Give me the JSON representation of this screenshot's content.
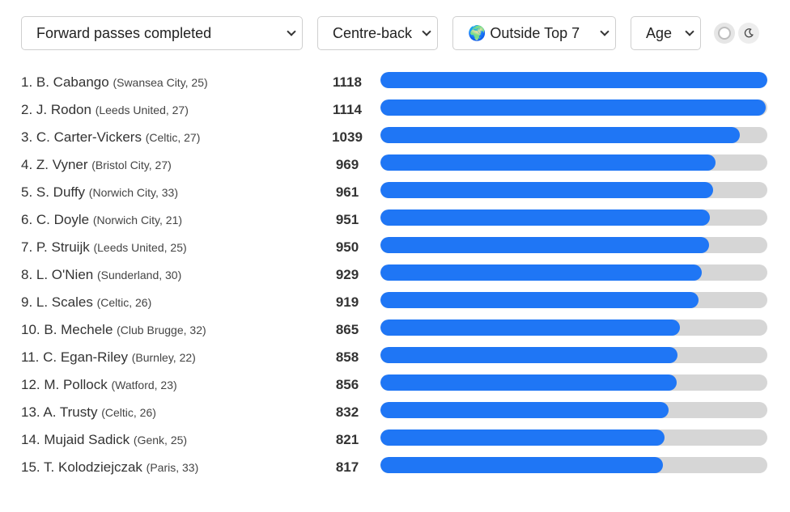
{
  "controls": {
    "metric": "Forward passes completed",
    "position": "Centre-back",
    "league": "🌍 Outside Top 7",
    "sort": "Age"
  },
  "theme_icons": [
    "light-mode-icon",
    "dark-mode-moon-icon"
  ],
  "bar_color": "#1f76f5",
  "track_color": "#d6d6d6",
  "max_value": 1118,
  "rows": [
    {
      "name": "1. B. Cabango",
      "meta": "(Swansea City, 25)",
      "value": "1118"
    },
    {
      "name": "2. J. Rodon",
      "meta": "(Leeds United, 27)",
      "value": "1114"
    },
    {
      "name": "3. C. Carter-Vickers",
      "meta": "(Celtic, 27)",
      "value": "1039"
    },
    {
      "name": "4. Z. Vyner",
      "meta": "(Bristol City, 27)",
      "value": "969"
    },
    {
      "name": "5. S. Duffy",
      "meta": "(Norwich City, 33)",
      "value": "961"
    },
    {
      "name": "6. C. Doyle",
      "meta": "(Norwich City, 21)",
      "value": "951"
    },
    {
      "name": "7. P. Struijk",
      "meta": "(Leeds United, 25)",
      "value": "950"
    },
    {
      "name": "8. L. O'Nien",
      "meta": "(Sunderland, 30)",
      "value": "929"
    },
    {
      "name": "9. L. Scales",
      "meta": "(Celtic, 26)",
      "value": "919"
    },
    {
      "name": "10. B. Mechele",
      "meta": "(Club Brugge, 32)",
      "value": "865"
    },
    {
      "name": "11. C. Egan-Riley",
      "meta": "(Burnley, 22)",
      "value": "858"
    },
    {
      "name": "12. M. Pollock",
      "meta": "(Watford, 23)",
      "value": "856"
    },
    {
      "name": "13. A. Trusty",
      "meta": "(Celtic, 26)",
      "value": "832"
    },
    {
      "name": "14. Mujaid Sadick",
      "meta": "(Genk, 25)",
      "value": "821"
    },
    {
      "name": "15. T. Kolodziejczak",
      "meta": "(Paris, 33)",
      "value": "817"
    }
  ]
}
